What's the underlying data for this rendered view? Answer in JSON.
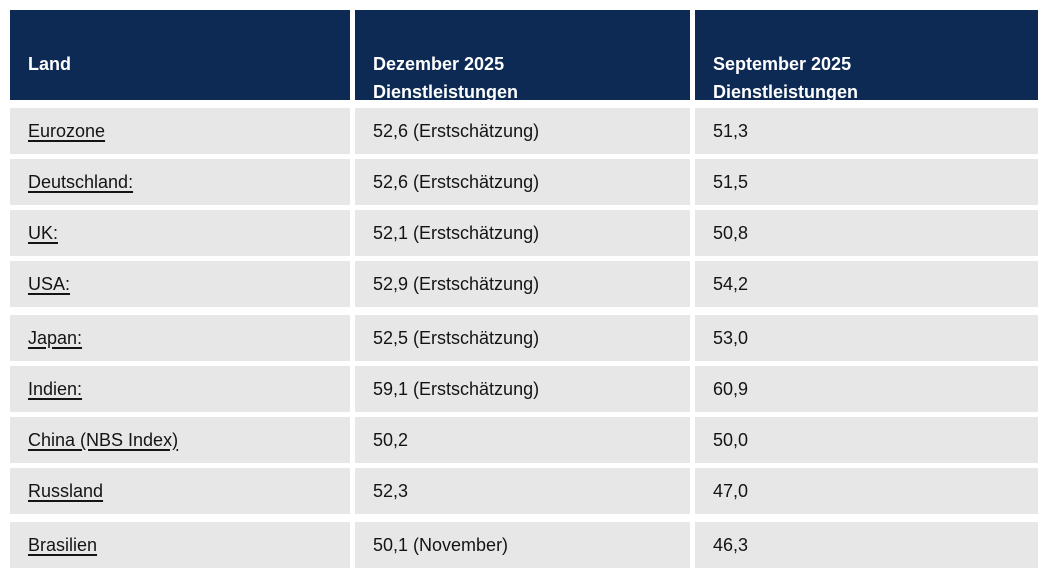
{
  "colors": {
    "header_bg": "#0d2a55",
    "header_text": "#ffffff",
    "row_bg": "#e7e7e7",
    "body_text": "#141414",
    "page_bg": "#ffffff"
  },
  "table": {
    "header": {
      "col1": "Land",
      "col2": "Dezember 2025\nDienstleistungen",
      "col3": "September 2025\nDienstleistungen"
    },
    "rows": [
      {
        "land": "Eurozone",
        "december": "52,6 (Erstschätzung)",
        "september": "51,3"
      },
      {
        "land": "Deutschland:",
        "december": "52,6 (Erstschätzung)",
        "september": "51,5"
      },
      {
        "land": "UK:",
        "december": "52,1 (Erstschätzung)",
        "september": "50,8"
      },
      {
        "land": "USA:",
        "december": "52,9 (Erstschätzung)",
        "september": "54,2"
      },
      {
        "land": "Japan:",
        "december": "52,5 (Erstschätzung)",
        "september": "53,0"
      },
      {
        "land": "Indien:",
        "december": "59,1 (Erstschätzung)",
        "september": "60,9"
      },
      {
        "land": "China (NBS Index)",
        "december": "50,2",
        "september": "50,0"
      },
      {
        "land": "Russland",
        "december": "52,3",
        "september": "47,0"
      },
      {
        "land": "Brasilien",
        "december": "50,1 (November)",
        "september": "46,3"
      }
    ]
  },
  "chart_data": {
    "type": "table",
    "title": "",
    "columns": [
      "Land",
      "Dezember 2025 Dienstleistungen",
      "September 2025 Dienstleistungen"
    ],
    "categories": [
      "Eurozone",
      "Deutschland",
      "UK",
      "USA",
      "Japan",
      "Indien",
      "China (NBS Index)",
      "Russland",
      "Brasilien"
    ],
    "series": [
      {
        "name": "Dezember 2025 Dienstleistungen",
        "values": [
          52.6,
          52.6,
          52.1,
          52.9,
          52.5,
          59.1,
          50.2,
          52.3,
          50.1
        ]
      },
      {
        "name": "September 2025 Dienstleistungen",
        "values": [
          51.3,
          51.5,
          50.8,
          54.2,
          53.0,
          60.9,
          50.0,
          47.0,
          46.3
        ]
      }
    ],
    "value_notes": {
      "flash_estimate_label": "(Erstschätzung)",
      "flash_estimate_rows": [
        "Eurozone",
        "Deutschland",
        "UK",
        "USA",
        "Japan",
        "Indien"
      ],
      "brasilien_note": "(November)"
    }
  }
}
